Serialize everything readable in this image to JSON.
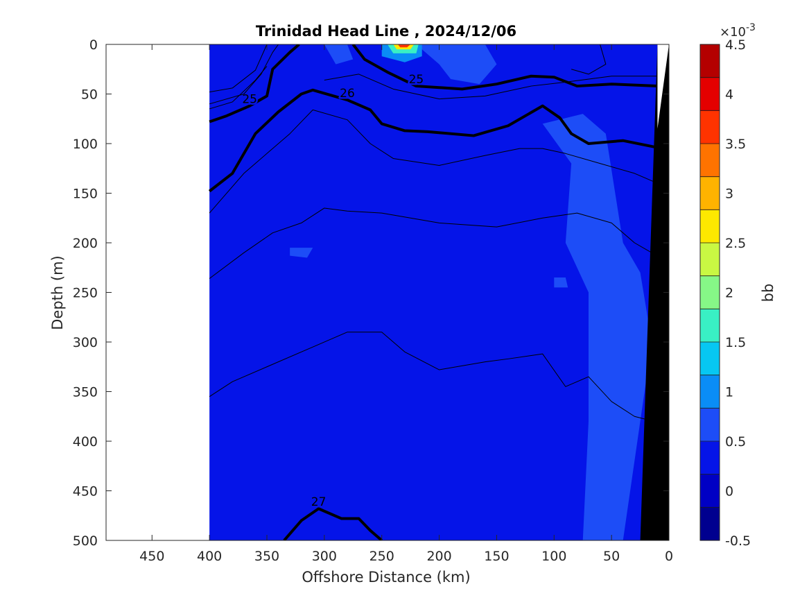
{
  "chart_data": {
    "type": "heatmap",
    "title": "Trinidad Head Line , 2024/12/06",
    "xlabel": "Offshore Distance (km)",
    "ylabel": "Depth (m)",
    "xlim": [
      490,
      0
    ],
    "ylim": [
      0,
      500
    ],
    "x_reversed": true,
    "y_reversed": true,
    "x_ticks": [
      450,
      400,
      350,
      300,
      250,
      200,
      150,
      100,
      50,
      0
    ],
    "x_tick_labels": [
      "450",
      "400",
      "350",
      "300",
      "250",
      "200",
      "150",
      "100",
      "50",
      "0"
    ],
    "y_ticks": [
      0,
      50,
      100,
      150,
      200,
      250,
      300,
      350,
      400,
      450,
      500
    ],
    "y_tick_labels": [
      "0",
      "50",
      "100",
      "150",
      "200",
      "250",
      "300",
      "350",
      "400",
      "450",
      "500"
    ],
    "data_extent_km": [
      400,
      0
    ],
    "colorbar": {
      "label": "bb",
      "exponent_label": "×10",
      "exponent": "-3",
      "range": [
        -0.5,
        4.5
      ],
      "ticks": [
        -0.5,
        0,
        0.5,
        1,
        1.5,
        2,
        2.5,
        3,
        3.5,
        4,
        4.5
      ],
      "tick_labels": [
        "-0.5",
        "0",
        "0.5",
        "1",
        "1.5",
        "2",
        "2.5",
        "3",
        "3.5",
        "4",
        "4.5"
      ],
      "colors": [
        "#00008f",
        "#0000c4",
        "#0514e8",
        "#1d4df7",
        "#0a8df6",
        "#07c7f2",
        "#39f0c4",
        "#86f787",
        "#c9f843",
        "#fde800",
        "#ffb300",
        "#ff7300",
        "#ff3300",
        "#e40000",
        "#b40000"
      ]
    },
    "background_value": 0.2,
    "patches": [
      {
        "value": 0.5,
        "points": [
          [
            110,
            80
          ],
          [
            75,
            70
          ],
          [
            55,
            90
          ],
          [
            40,
            200
          ],
          [
            25,
            230
          ],
          [
            15,
            300
          ],
          [
            30,
            420
          ],
          [
            40,
            500
          ],
          [
            75,
            500
          ],
          [
            70,
            380
          ],
          [
            70,
            250
          ],
          [
            90,
            200
          ],
          [
            85,
            120
          ]
        ]
      },
      {
        "value": 0.5,
        "points": [
          [
            220,
            0
          ],
          [
            160,
            0
          ],
          [
            150,
            20
          ],
          [
            165,
            40
          ],
          [
            190,
            35
          ],
          [
            200,
            20
          ]
        ]
      },
      {
        "value": 0.5,
        "points": [
          [
            300,
            0
          ],
          [
            280,
            0
          ],
          [
            275,
            15
          ],
          [
            290,
            20
          ]
        ]
      },
      {
        "value": 0.5,
        "points": [
          [
            330,
            205
          ],
          [
            310,
            205
          ],
          [
            315,
            215
          ],
          [
            330,
            213
          ]
        ]
      },
      {
        "value": 0.5,
        "points": [
          [
            100,
            235
          ],
          [
            90,
            235
          ],
          [
            88,
            245
          ],
          [
            100,
            245
          ]
        ]
      },
      {
        "value": 1.0,
        "points": [
          [
            250,
            0
          ],
          [
            215,
            0
          ],
          [
            215,
            12
          ],
          [
            230,
            18
          ],
          [
            250,
            12
          ]
        ]
      },
      {
        "value": 1.5,
        "points": [
          [
            245,
            0
          ],
          [
            218,
            0
          ],
          [
            220,
            9
          ],
          [
            240,
            9
          ]
        ]
      },
      {
        "value": 2.5,
        "points": [
          [
            240,
            0
          ],
          [
            222,
            0
          ],
          [
            225,
            5
          ],
          [
            237,
            5
          ]
        ]
      },
      {
        "value": 3.5,
        "points": [
          [
            236,
            0
          ],
          [
            225,
            0
          ],
          [
            228,
            3
          ],
          [
            234,
            3
          ]
        ]
      }
    ],
    "contours": [
      {
        "label": "25",
        "bold": true,
        "points": [
          [
            400,
            78
          ],
          [
            385,
            72
          ],
          [
            365,
            62
          ],
          [
            350,
            52
          ],
          [
            345,
            25
          ],
          [
            330,
            8
          ],
          [
            322,
            0
          ]
        ]
      },
      {
        "label": "25",
        "bold": true,
        "points": [
          [
            275,
            0
          ],
          [
            265,
            15
          ],
          [
            245,
            28
          ],
          [
            220,
            42
          ],
          [
            180,
            45
          ],
          [
            150,
            40
          ],
          [
            120,
            32
          ],
          [
            100,
            33
          ],
          [
            80,
            42
          ],
          [
            50,
            40
          ],
          [
            10,
            42
          ]
        ]
      },
      {
        "label": "26",
        "bold": true,
        "points": [
          [
            400,
            148
          ],
          [
            380,
            130
          ],
          [
            360,
            90
          ],
          [
            340,
            68
          ],
          [
            320,
            50
          ],
          [
            310,
            46
          ],
          [
            280,
            56
          ],
          [
            260,
            66
          ],
          [
            250,
            80
          ],
          [
            230,
            87
          ],
          [
            210,
            88
          ],
          [
            170,
            92
          ],
          [
            140,
            82
          ],
          [
            110,
            62
          ],
          [
            95,
            74
          ],
          [
            85,
            90
          ],
          [
            70,
            100
          ],
          [
            40,
            97
          ],
          [
            10,
            104
          ]
        ]
      },
      {
        "label": "27",
        "bold": true,
        "points": [
          [
            335,
            500
          ],
          [
            320,
            480
          ],
          [
            305,
            468
          ],
          [
            285,
            478
          ],
          [
            270,
            478
          ],
          [
            260,
            490
          ],
          [
            250,
            500
          ]
        ]
      },
      {
        "label": "",
        "bold": false,
        "points": [
          [
            400,
            60
          ],
          [
            370,
            50
          ],
          [
            355,
            30
          ],
          [
            345,
            8
          ],
          [
            340,
            0
          ]
        ]
      },
      {
        "label": "",
        "bold": false,
        "points": [
          [
            400,
            48
          ],
          [
            380,
            44
          ],
          [
            360,
            26
          ],
          [
            350,
            0
          ]
        ]
      },
      {
        "label": "",
        "bold": false,
        "points": [
          [
            300,
            36
          ],
          [
            270,
            30
          ],
          [
            240,
            45
          ],
          [
            200,
            55
          ],
          [
            160,
            52
          ],
          [
            120,
            42
          ],
          [
            90,
            38
          ],
          [
            50,
            32
          ],
          [
            10,
            32
          ]
        ]
      },
      {
        "label": "",
        "bold": false,
        "points": [
          [
            400,
            170
          ],
          [
            370,
            130
          ],
          [
            350,
            110
          ],
          [
            330,
            90
          ],
          [
            310,
            66
          ],
          [
            280,
            76
          ],
          [
            260,
            100
          ],
          [
            240,
            115
          ],
          [
            200,
            122
          ],
          [
            160,
            112
          ],
          [
            130,
            105
          ],
          [
            110,
            105
          ],
          [
            90,
            110
          ],
          [
            60,
            120
          ],
          [
            30,
            130
          ],
          [
            10,
            140
          ]
        ]
      },
      {
        "label": "",
        "bold": false,
        "points": [
          [
            400,
            236
          ],
          [
            370,
            210
          ],
          [
            345,
            190
          ],
          [
            320,
            180
          ],
          [
            300,
            165
          ],
          [
            280,
            168
          ],
          [
            250,
            170
          ],
          [
            200,
            180
          ],
          [
            150,
            184
          ],
          [
            110,
            175
          ],
          [
            80,
            170
          ],
          [
            50,
            180
          ],
          [
            30,
            200
          ],
          [
            15,
            210
          ]
        ]
      },
      {
        "label": "",
        "bold": false,
        "points": [
          [
            400,
            355
          ],
          [
            380,
            340
          ],
          [
            350,
            325
          ],
          [
            310,
            305
          ],
          [
            280,
            290
          ],
          [
            250,
            290
          ],
          [
            230,
            310
          ],
          [
            200,
            328
          ],
          [
            160,
            320
          ],
          [
            140,
            317
          ],
          [
            110,
            312
          ],
          [
            90,
            345
          ],
          [
            70,
            335
          ],
          [
            50,
            360
          ],
          [
            30,
            375
          ],
          [
            20,
            378
          ]
        ]
      },
      {
        "label": "",
        "bold": false,
        "points": [
          [
            60,
            0
          ],
          [
            55,
            20
          ],
          [
            70,
            30
          ],
          [
            85,
            25
          ]
        ]
      },
      {
        "label": "",
        "bold": false,
        "points": [
          [
            400,
            65
          ],
          [
            380,
            58
          ],
          [
            360,
            36
          ],
          [
            350,
            22
          ]
        ]
      }
    ],
    "bathymetry": {
      "color": "#000000",
      "points": [
        [
          10,
          0
        ],
        [
          25,
          500
        ],
        [
          0,
          500
        ],
        [
          0,
          0
        ]
      ]
    },
    "nodata_wedge": {
      "color": "#ffffff",
      "points": [
        [
          0,
          0
        ],
        [
          10,
          0
        ],
        [
          10,
          85
        ]
      ]
    }
  }
}
